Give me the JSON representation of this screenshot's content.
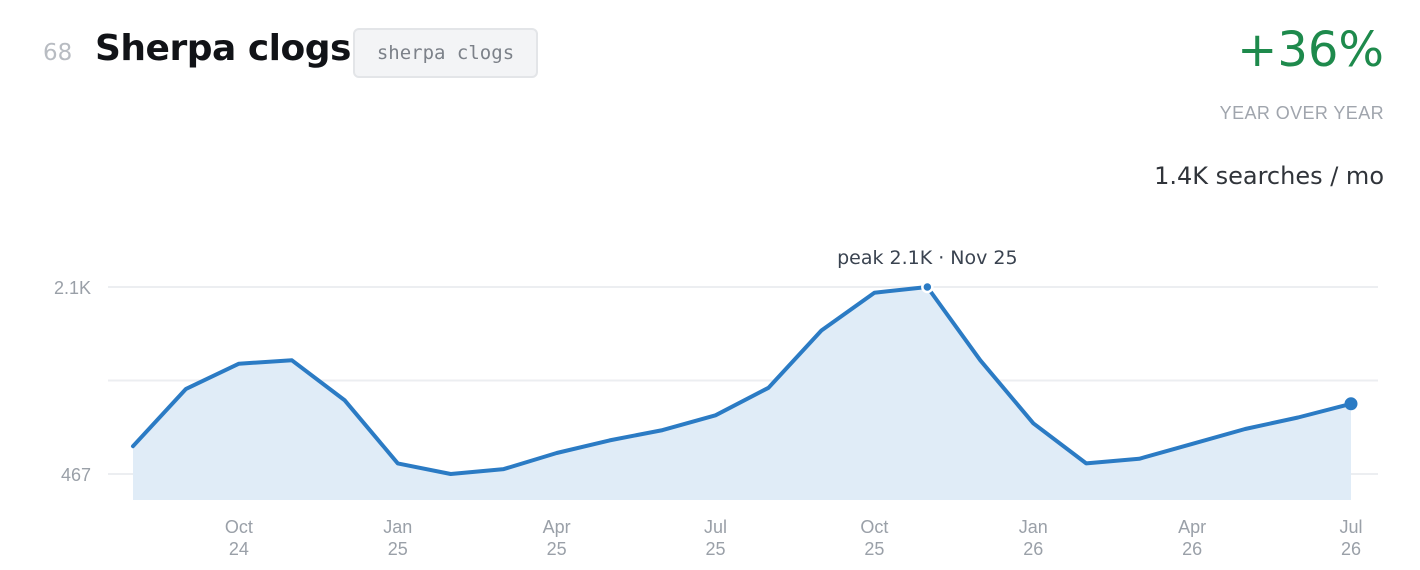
{
  "header": {
    "rank": "68",
    "title": "Sherpa clogs",
    "tag": "sherpa clogs"
  },
  "stats": {
    "yoy_change": "+36%",
    "yoy_label": "YEAR OVER YEAR",
    "volume": "1.4K searches / mo"
  },
  "colors": {
    "line": "#2b7bc4",
    "fill": "#e0ecf7",
    "positive": "#1e8a4c"
  },
  "chart_data": {
    "type": "area",
    "x": [
      "2024-08",
      "2024-09",
      "2024-10",
      "2024-11",
      "2024-12",
      "2025-01",
      "2025-02",
      "2025-03",
      "2025-04",
      "2025-05",
      "2025-06",
      "2025-07",
      "2025-08",
      "2025-09",
      "2025-10",
      "2025-11",
      "2025-12",
      "2026-01",
      "2026-02",
      "2026-03",
      "2026-04",
      "2026-05",
      "2026-06",
      "2026-07"
    ],
    "series": [
      {
        "values": [
          710,
          1210,
          1430,
          1460,
          1110,
          560,
          467,
          510,
          650,
          760,
          850,
          980,
          1220,
          1720,
          2050,
          2100,
          1460,
          910,
          560,
          600,
          730,
          860,
          960,
          1080
        ]
      }
    ],
    "ylim": [
      240,
      2100
    ],
    "y_ticks": [
      {
        "value": 2100,
        "label": "2.1K"
      },
      {
        "value": 467,
        "label": "467"
      }
    ],
    "y_gridlines": [
      2100,
      1283.5,
      467
    ],
    "x_ticks": [
      {
        "x": "2024-10",
        "month": "Oct",
        "year": "24"
      },
      {
        "x": "2025-01",
        "month": "Jan",
        "year": "25"
      },
      {
        "x": "2025-04",
        "month": "Apr",
        "year": "25"
      },
      {
        "x": "2025-07",
        "month": "Jul",
        "year": "25"
      },
      {
        "x": "2025-10",
        "month": "Oct",
        "year": "25"
      },
      {
        "x": "2026-01",
        "month": "Jan",
        "year": "26"
      },
      {
        "x": "2026-04",
        "month": "Apr",
        "year": "26"
      },
      {
        "x": "2026-07",
        "month": "Jul",
        "year": "26"
      }
    ],
    "peak": {
      "x": "2025-11",
      "value": 2100,
      "label": "peak 2.1K · Nov 25"
    },
    "last_point_marker": true,
    "grid": true
  }
}
